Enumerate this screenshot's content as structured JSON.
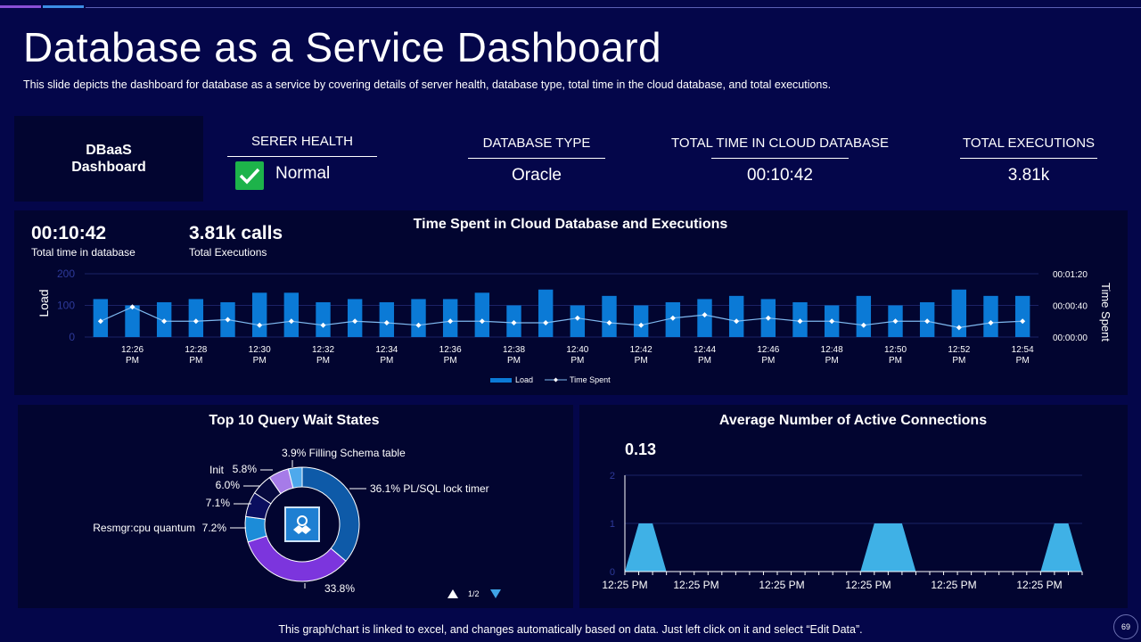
{
  "header": {
    "title": "Database as a Service Dashboard",
    "subtitle": "This slide depicts the dashboard for database as a service by covering details of server health, database type, total time in the cloud database, and total executions."
  },
  "kpis": {
    "box_label_line1": "DBaaS",
    "box_label_line2": "Dashboard",
    "server_health": {
      "label": "SERER HEALTH",
      "value": "Normal"
    },
    "database_type": {
      "label": "DATABASE TYPE",
      "value": "Oracle"
    },
    "total_time": {
      "label": "TOTAL TIME IN CLOUD DATABASE",
      "value": "00:10:42"
    },
    "total_executions": {
      "label": "TOTAL EXECUTIONS",
      "value": "3.81k"
    }
  },
  "time_panel": {
    "big_time": "00:10:42",
    "big_time_label": "Total time in database",
    "big_calls": "3.81k calls",
    "big_calls_label": "Total Executions"
  },
  "pager": {
    "text": "1/2"
  },
  "footer": {
    "note": "This graph/chart is linked to excel, and changes automatically based on data. Just left click on it and select “Edit Data”.",
    "page_number": "69"
  },
  "colors": {
    "background": "#04064a",
    "panel": "#020530",
    "bar": "#0b7ad6",
    "line": "#7fb9f0",
    "area": "#3fb1e6",
    "accent_purple": "#8a4fd6",
    "accent_blue": "#3c8ee6",
    "check_green": "#1db34a"
  },
  "chart_data": [
    {
      "type": "bar",
      "title": "Time Spent in Cloud Database and Executions",
      "ylabel": "Load",
      "y2label": "Time Spent",
      "ylim": [
        0,
        200
      ],
      "yticks": [
        "0",
        "100",
        "200"
      ],
      "y2ticks": [
        "00:00:00",
        "00:00:40",
        "00:01:20"
      ],
      "y2lim_seconds": [
        0,
        80
      ],
      "x_tick_labels": [
        "12:26 PM",
        "12:28 PM",
        "12:30 PM",
        "12:32 PM",
        "12:34 PM",
        "12:36 PM",
        "12:38 PM",
        "12:40 PM",
        "12:42 PM",
        "12:44 PM",
        "12:46 PM",
        "12:48 PM",
        "12:50 PM",
        "12:52 PM",
        "12:54 PM"
      ],
      "legend": [
        "Load",
        "Time Spent"
      ],
      "series": [
        {
          "name": "Load",
          "values": [
            120,
            100,
            110,
            120,
            110,
            140,
            140,
            110,
            120,
            110,
            120,
            120,
            140,
            100,
            150,
            100,
            130,
            100,
            110,
            120,
            130,
            120,
            110,
            100,
            130,
            100,
            110,
            150,
            130,
            130
          ]
        },
        {
          "name": "Time Spent",
          "values": [
            20,
            38,
            20,
            20,
            22,
            15,
            20,
            15,
            20,
            18,
            15,
            20,
            20,
            18,
            18,
            24,
            18,
            15,
            24,
            28,
            20,
            24,
            20,
            20,
            15,
            20,
            20,
            12,
            18,
            20
          ]
        }
      ]
    },
    {
      "type": "pie",
      "title": "Top 10 Query Wait States",
      "slices": [
        {
          "label": "PL/SQL lock timer",
          "value": 36.1,
          "text": "36.1% PL/SQL lock timer",
          "color": "#0e5aa8"
        },
        {
          "label": "",
          "value": 33.8,
          "text": "33.8%",
          "color": "#7c35dd"
        },
        {
          "label": "Resmgr:cpu quantum",
          "value": 7.2,
          "text": "7.2%",
          "name_text": "Resmgr:cpu quantum",
          "color": "#1c8cd8"
        },
        {
          "label": "",
          "value": 7.1,
          "text": "7.1%",
          "color": "#0a0e5e"
        },
        {
          "label": "",
          "value": 6.0,
          "text": "6.0%",
          "color": "#06093e"
        },
        {
          "label": "Init",
          "value": 5.8,
          "text": "5.8%",
          "name_text": "Init",
          "color": "#a67be8"
        },
        {
          "label": "Filling Schema table",
          "value": 3.9,
          "text": "3.9%  Filling Schema table",
          "color": "#4fa9ec"
        }
      ]
    },
    {
      "type": "area",
      "title": "Average Number of Active Connections",
      "headline": "0.13",
      "ylim": [
        0,
        2
      ],
      "yticks": [
        "0",
        "1",
        "2"
      ],
      "x_tick_labels": [
        "12:25 PM",
        "12:25 PM",
        "12:25 PM",
        "12:25 PM",
        "12:25 PM",
        "12:25 PM"
      ],
      "values": [
        0,
        1,
        1,
        0,
        0,
        0,
        0,
        0,
        0,
        0,
        0,
        0,
        0,
        0,
        0,
        0,
        0,
        0,
        1,
        1,
        1,
        0,
        0,
        0,
        0,
        0,
        0,
        0,
        0,
        0,
        0,
        1,
        1,
        0
      ]
    }
  ]
}
